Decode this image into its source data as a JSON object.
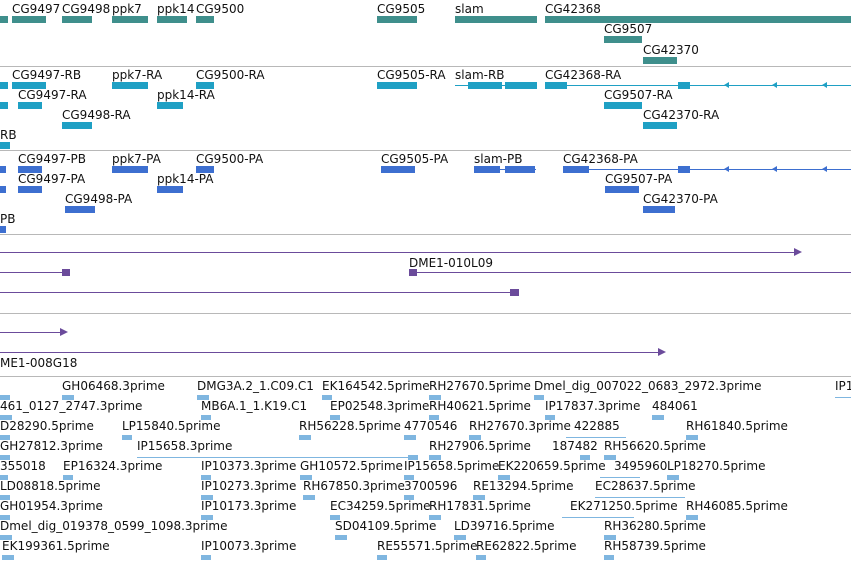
{
  "colors": {
    "gene": "#3f8f8c",
    "transcript_cyan": "#1fa0c4",
    "transcript_blue": "#3d6fd0",
    "clone": "#6b4b9b",
    "est": "#7fb6e0"
  },
  "genes": {
    "cg9497": "CG9497",
    "cg9498": "CG9498",
    "ppk7": "ppk7",
    "ppk14": "ppk14",
    "cg9500": "CG9500",
    "cg9505": "CG9505",
    "slam": "slam",
    "cg42368": "CG42368",
    "cg9507": "CG9507",
    "cg42370": "CG42370"
  },
  "transcripts_ra": {
    "cg9497_rb": "CG9497-RB",
    "ppk7_ra": "ppk7-RA",
    "cg9500_ra": "CG9500-RA",
    "cg9505_ra": "CG9505-RA",
    "slam_rb": "slam-RB",
    "cg42368_ra": "CG42368-RA",
    "cg9497_ra": "CG9497-RA",
    "ppk14_ra": "ppk14-RA",
    "cg9507_ra": "CG9507-RA",
    "cg9498_ra": "CG9498-RA",
    "cg42370_ra": "CG42370-RA",
    "edge_rb": "RB"
  },
  "transcripts_pa": {
    "cg9497_pb": "CG9497-PB",
    "ppk7_pa": "ppk7-PA",
    "cg9500_pa": "CG9500-PA",
    "cg9505_pa": "CG9505-PA",
    "slam_pb": "slam-PB",
    "cg42368_pa": "CG42368-PA",
    "cg9497_pa": "CG9497-PA",
    "ppk14_pa": "ppk14-PA",
    "cg9507_pa": "CG9507-PA",
    "cg9498_pa": "CG9498-PA",
    "cg42370_pa": "CG42370-PA",
    "edge_pb": "PB"
  },
  "clones": {
    "dme1_010l09": "DME1-010L09",
    "dme1_008g18": "ME1-008G18"
  },
  "ests": [
    "GH06468.3prime",
    "DMG3A.2_1.C09.C1",
    "EK164542.5prime",
    "RH27670.5prime",
    "Dmel_dig_007022_0683_2972.3prime",
    "IP1",
    "461_0127_2747.3prime",
    "MB6A.1_1.K19.C1",
    "EP02548.3prime",
    "RH40621.5prime",
    "IP17837.3prime",
    "484061",
    "D28290.5prime",
    "LP15840.5prime",
    "RH56228.5prime",
    "4770546",
    "RH27670.3prime",
    "422885",
    "RH61840.5prime",
    "GH27812.3prime",
    "IP15658.3prime",
    "RH27906.5prime",
    "187482",
    "RH56620.5prime",
    "355018",
    "EP16324.3prime",
    "IP10373.3prime",
    "GH10572.5prime",
    "IP15658.5prime",
    "EK220659.5prime",
    "3495960",
    "LP18270.5prime",
    "LD08818.5prime",
    "IP10273.3prime",
    "RH67850.3prime",
    "3700596",
    "RE13294.5prime",
    "EC28637.5prime",
    "GH01954.3prime",
    "IP10173.3prime",
    "EC34259.5prime",
    "RH17831.5prime",
    "EK271250.5prime",
    "RH46085.5prime",
    "Dmel_dig_019378_0599_1098.3prime",
    "SD04109.5prime",
    "LD39716.5prime",
    "RH36280.5prime",
    "EK199361.5prime",
    "IP10073.3prime",
    "RE55571.5prime",
    "RE62822.5prime",
    "RH58739.5prime"
  ]
}
